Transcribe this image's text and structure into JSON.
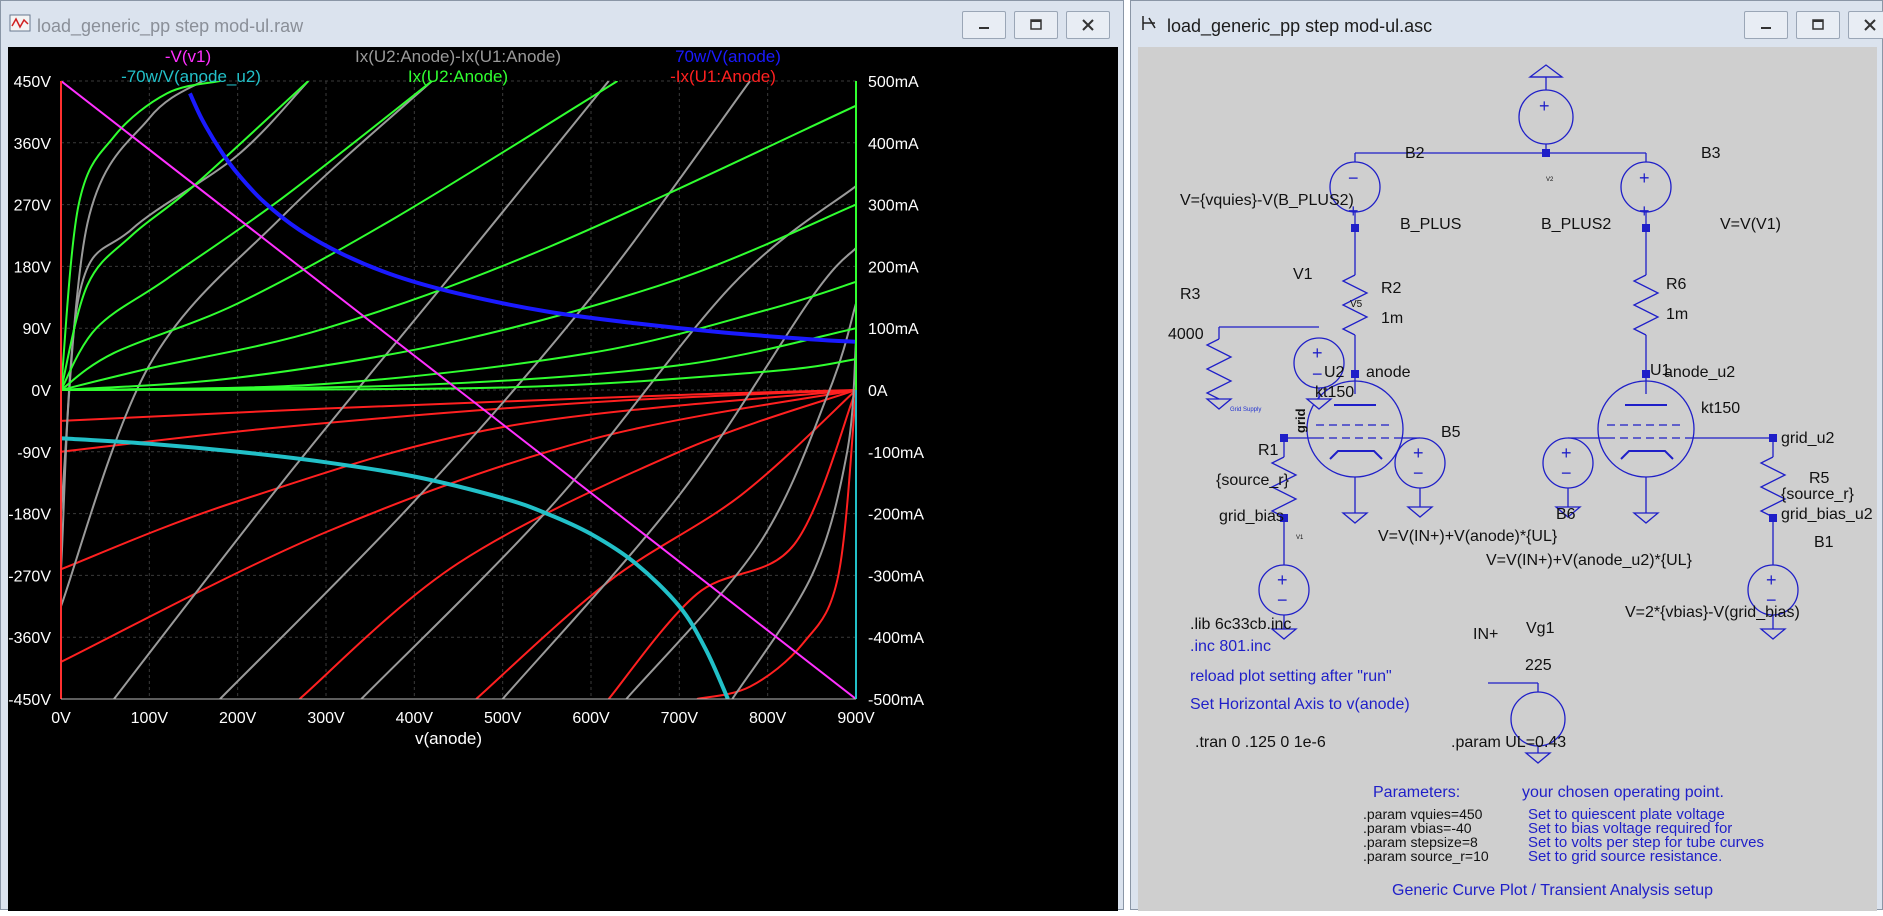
{
  "plot_window": {
    "title": "load_generic_pp step mod-ul.raw",
    "x_axis_label": "v(anode)",
    "trace_labels": [
      {
        "text": "-V(v1)",
        "color": "#ff30ff"
      },
      {
        "text": "Ix(U2:Anode)-Ix(U1:Anode)",
        "color": "#9a9a9a"
      },
      {
        "text": "70w/V(anode)",
        "color": "#1a1aff"
      },
      {
        "text": "-70w/V(anode_u2)",
        "color": "#22c0c8"
      },
      {
        "text": "Ix(U2:Anode)",
        "color": "#30ff30"
      },
      {
        "text": "-Ix(U1:Anode)",
        "color": "#ff2020"
      }
    ],
    "left_ticks": [
      "450V",
      "360V",
      "270V",
      "180V",
      "90V",
      "0V",
      "-90V",
      "-180V",
      "-270V",
      "-360V",
      "-450V"
    ],
    "right_ticks": [
      "500mA",
      "400mA",
      "300mA",
      "200mA",
      "100mA",
      "0A",
      "-100mA",
      "-200mA",
      "-300mA",
      "-400mA",
      "-500mA"
    ],
    "x_ticks": [
      "0V",
      "100V",
      "200V",
      "300V",
      "400V",
      "500V",
      "600V",
      "700V",
      "800V",
      "900V"
    ]
  },
  "chart_data": {
    "type": "line",
    "title": "",
    "xlabel": "v(anode)",
    "xlim": [
      0,
      900
    ],
    "ylim_left": [
      -450,
      450
    ],
    "ylim_right": [
      -500,
      500
    ],
    "grid": true,
    "series": [
      {
        "name": "-V(v1)",
        "color": "#ff30ff",
        "axis": "left",
        "x": [
          0,
          900
        ],
        "y": [
          450,
          -450
        ]
      },
      {
        "name": "70w/V(anode)",
        "color": "#1a1aff",
        "axis": "right",
        "x": [
          146,
          160,
          180,
          200,
          230,
          270,
          320,
          380,
          450,
          550,
          650,
          750,
          850,
          900
        ],
        "y": [
          480,
          437,
          389,
          350,
          304,
          259,
          219,
          184,
          156,
          127,
          108,
          93,
          82,
          78
        ]
      },
      {
        "name": "-70w/V(anode_u2)",
        "color": "#22c0c8",
        "axis": "right",
        "x": [
          0,
          100,
          200,
          300,
          400,
          500,
          550,
          600,
          650,
          700,
          730,
          755
        ],
        "y": [
          -78,
          -87,
          -100,
          -117,
          -140,
          -175,
          -200,
          -233,
          -280,
          -350,
          -420,
          -500
        ]
      },
      {
        "name": "Ix(U2:Anode)",
        "color": "#30ff30",
        "axis": "right",
        "curves": [
          {
            "x": [
              0,
              20,
              60,
              120,
              180
            ],
            "y": [
              0,
              300,
              410,
              480,
              500
            ]
          },
          {
            "x": [
              0,
              30,
              80,
              150,
              280
            ],
            "y": [
              0,
              170,
              250,
              330,
              500
            ]
          },
          {
            "x": [
              0,
              40,
              120,
              250,
              420
            ],
            "y": [
              0,
              100,
              180,
              310,
              500
            ]
          },
          {
            "x": [
              0,
              60,
              200,
              380,
              630
            ],
            "y": [
              0,
              60,
              140,
              280,
              500
            ]
          },
          {
            "x": [
              0,
              100,
              300,
              550,
              900
            ],
            "y": [
              0,
              35,
              100,
              230,
              460
            ]
          },
          {
            "x": [
              0,
              200,
              450,
              700,
              900
            ],
            "y": [
              0,
              20,
              80,
              180,
              300
            ]
          },
          {
            "x": [
              0,
              300,
              600,
              800,
              900
            ],
            "y": [
              0,
              10,
              60,
              130,
              175
            ]
          },
          {
            "x": [
              0,
              400,
              700,
              900
            ],
            "y": [
              0,
              8,
              40,
              100
            ]
          },
          {
            "x": [
              0,
              500,
              800,
              900
            ],
            "y": [
              0,
              4,
              30,
              50
            ]
          }
        ]
      },
      {
        "name": "-Ix(U1:Anode)",
        "color": "#ff2020",
        "axis": "right",
        "curves": [
          {
            "x": [
              720,
              780,
              840,
              880,
              900
            ],
            "y": [
              -500,
              -480,
              -410,
              -300,
              0
            ]
          },
          {
            "x": [
              620,
              720,
              830,
              900
            ],
            "y": [
              -500,
              -330,
              -250,
              0
            ]
          },
          {
            "x": [
              470,
              620,
              770,
              900
            ],
            "y": [
              -500,
              -310,
              -170,
              0
            ]
          },
          {
            "x": [
              270,
              450,
              700,
              900
            ],
            "y": [
              -500,
              -280,
              -100,
              0
            ]
          },
          {
            "x": [
              0,
              300,
              600,
              900
            ],
            "y": [
              -440,
              -230,
              -80,
              0
            ]
          },
          {
            "x": [
              0,
              200,
              500,
              900
            ],
            "y": [
              -290,
              -180,
              -60,
              0
            ]
          },
          {
            "x": [
              0,
              250,
              600,
              900
            ],
            "y": [
              -100,
              -60,
              -20,
              0
            ]
          },
          {
            "x": [
              0,
              300,
              700,
              900
            ],
            "y": [
              -50,
              -30,
              -8,
              0
            ]
          }
        ]
      },
      {
        "name": "Ix(U2:Anode)-Ix(U1:Anode)",
        "color": "#9a9a9a",
        "axis": "right",
        "curves": [
          {
            "x": [
              0,
              30,
              100,
              160
            ],
            "y": [
              -200,
              270,
              440,
              500
            ]
          },
          {
            "x": [
              0,
              20,
              80,
              200,
              280
            ],
            "y": [
              -290,
              150,
              260,
              380,
              500
            ]
          },
          {
            "x": [
              0,
              100,
              250,
              420
            ],
            "y": [
              -350,
              40,
              280,
              500
            ]
          },
          {
            "x": [
              60,
              250,
              450,
              620
            ],
            "y": [
              -500,
              -150,
              200,
              500
            ]
          },
          {
            "x": [
              180,
              400,
              600,
              780
            ],
            "y": [
              -500,
              -180,
              150,
              500
            ]
          },
          {
            "x": [
              340,
              560,
              760,
              900
            ],
            "y": [
              -500,
              -180,
              170,
              330
            ]
          },
          {
            "x": [
              500,
              700,
              850,
              900
            ],
            "y": [
              -500,
              -170,
              150,
              230
            ]
          },
          {
            "x": [
              640,
              790,
              870,
              900
            ],
            "y": [
              -500,
              -250,
              0,
              140
            ]
          },
          {
            "x": [
              760,
              850,
              890,
              900
            ],
            "y": [
              -500,
              -300,
              -100,
              80
            ]
          }
        ]
      }
    ]
  },
  "schematic_window": {
    "title": "load_generic_pp step mod-ul.asc",
    "labels": {
      "b2": "B2",
      "b3": "B3",
      "v2": "V2",
      "b2_expr": "V={vquies}-V(B_PLUS2)",
      "b_plus": "B_PLUS",
      "b_plus2": "B_PLUS2",
      "b3_expr": "V=V(V1)",
      "r2": "R2",
      "r2_val": "1m",
      "r6": "R6",
      "r6_val": "1m",
      "r3": "R3",
      "r3_val": "4000",
      "v1": "V1",
      "v5": "V5",
      "u2": "U2",
      "anode": "anode",
      "u1": "U1",
      "anode_u2": "anode_u2",
      "kt150_a": "kt150",
      "kt150_b": "kt150",
      "grid_supply": "Grid Supply",
      "grid": "grid",
      "r1": "R1",
      "source_r_a": "{source_r}",
      "grid_bias": "grid_bias",
      "b5": "B5",
      "b6": "B6",
      "grid_u2": "grid_u2",
      "r5": "R5",
      "source_r_b": "{source_r}",
      "grid_bias_u2": "grid_bias_u2",
      "b1": "B1",
      "v1_small": "V1",
      "b5_expr": "V=V(IN+)+V(anode)*{UL}",
      "b6_expr": "V=V(IN+)+V(anode_u2)*{UL}",
      "b1_expr": "V=2*{vbias}-V(grid_bias)",
      "in_plus": "IN+",
      "vg1": "Vg1",
      "vg1_val": "225",
      "lib": ".lib 6c33cb.inc",
      "inc": ".inc 801.inc",
      "reload_note": "reload plot setting after \"run\"",
      "axis_note": "Set Horizontal Axis to v(anode)",
      "tran": ".tran 0 .125 0 1e-6",
      "param_ul": ".param UL=0.43",
      "params_header": "Parameters:",
      "op_point": "your chosen operating point.",
      "footer": "Generic Curve Plot / Transient Analysis setup"
    },
    "params": [
      {
        "param": ".param vquies=450",
        "desc": "Set to quiescent plate voltage"
      },
      {
        "param": ".param vbias=-40",
        "desc": "Set to bias voltage required for"
      },
      {
        "param": ".param stepsize=8",
        "desc": "Set to volts per step for tube curves"
      },
      {
        "param": ".param source_r=10",
        "desc": "Set to grid source resistance."
      }
    ]
  }
}
